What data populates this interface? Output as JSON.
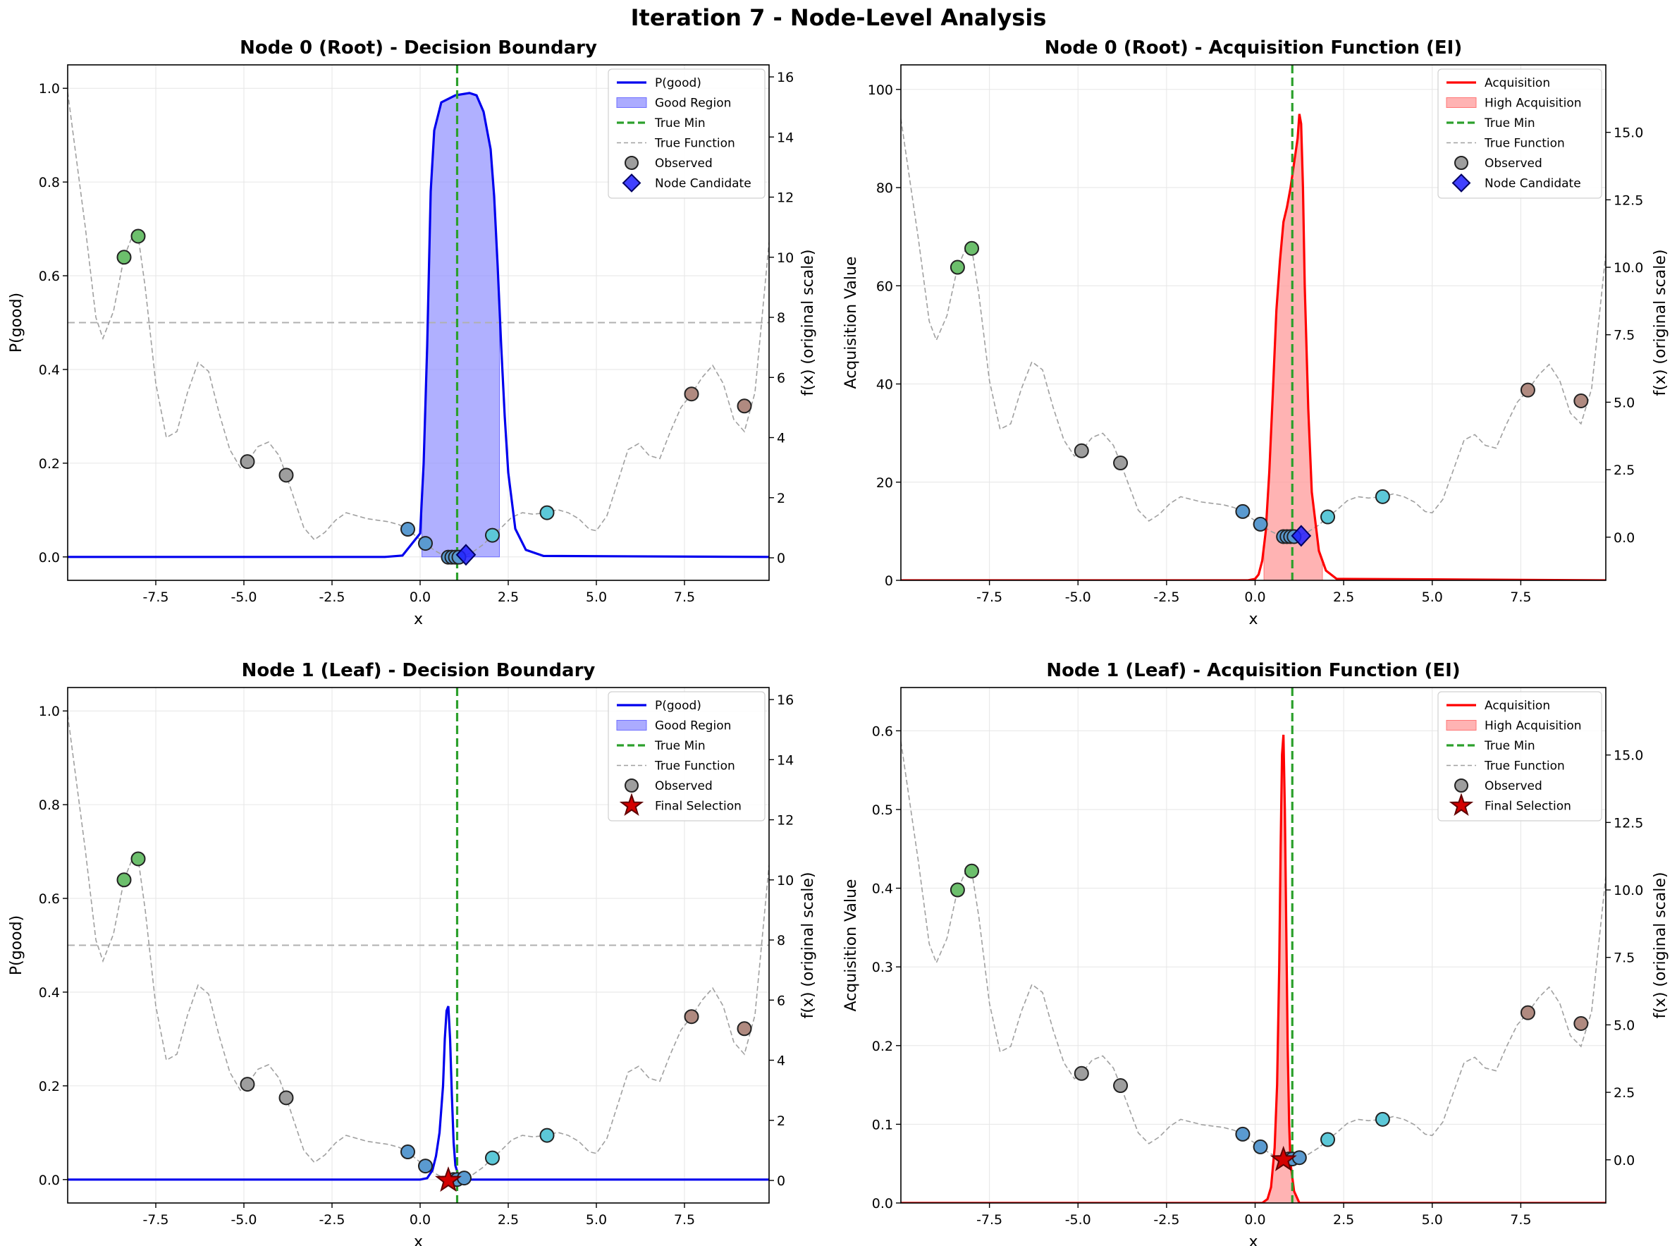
{
  "figure_title": "Iteration 7 - Node-Level Analysis",
  "colors": {
    "pgood": "#0000ee",
    "good_region": "#8f8fff",
    "acquisition": "#ff0000",
    "high_acquisition": "#ff9999",
    "true_min": "#2ca02c",
    "true_function": "#a0a0a0",
    "threshold": "#b0b0b0",
    "candidate": "#1f1fff",
    "final_selection": "#d40000",
    "obs_green": "#6cbf6c",
    "obs_gray": "#9e9e9e",
    "obs_blue": "#5a9ad0",
    "obs_cyan": "#5cc8d8",
    "obs_brown": "#b08a80"
  },
  "chart_data": [
    {
      "id": "node0-decision",
      "type": "line",
      "title": "Node 0 (Root) - Decision Boundary",
      "xlabel": "x",
      "ylabel": "P(good)",
      "y2label": "f(x) (original scale)",
      "xlim": [
        -10,
        9.9
      ],
      "ylim": [
        -0.05,
        1.05
      ],
      "y2lim": [
        -0.75,
        16.4
      ],
      "xticks": [
        "-7.5",
        "-5.0",
        "-2.5",
        "0.0",
        "2.5",
        "5.0",
        "7.5"
      ],
      "xtick_values": [
        -7.5,
        -5.0,
        -2.5,
        0.0,
        2.5,
        5.0,
        7.5
      ],
      "yticks": [
        "0.0",
        "0.2",
        "0.4",
        "0.6",
        "0.8",
        "1.0"
      ],
      "ytick_values": [
        0,
        0.2,
        0.4,
        0.6,
        0.8,
        1.0
      ],
      "y2ticks": [
        "0",
        "2",
        "4",
        "6",
        "8",
        "10",
        "12",
        "14",
        "16"
      ],
      "y2tick_values": [
        0,
        2,
        4,
        6,
        8,
        10,
        12,
        14,
        16
      ],
      "threshold": 0.5,
      "true_min_x": 1.05,
      "curve_kind": "pgood",
      "curve": {
        "x": [
          -10,
          -1.0,
          -0.5,
          0.0,
          0.1,
          0.2,
          0.3,
          0.4,
          0.6,
          1.0,
          1.4,
          1.6,
          1.8,
          2.0,
          2.1,
          2.2,
          2.3,
          2.4,
          2.5,
          2.7,
          3.0,
          3.5,
          9.9
        ],
        "y": [
          0,
          0,
          0.003,
          0.05,
          0.2,
          0.45,
          0.78,
          0.91,
          0.97,
          0.985,
          0.99,
          0.985,
          0.95,
          0.87,
          0.77,
          0.62,
          0.45,
          0.3,
          0.18,
          0.06,
          0.015,
          0.002,
          0
        ]
      },
      "fill_range": [
        0.05,
        2.25
      ],
      "legend": [
        "P(good)",
        "Good Region",
        "True Min",
        "True Function",
        "Observed",
        "Node Candidate"
      ],
      "marker": {
        "kind": "diamond",
        "x": 1.3,
        "y": 0.1
      },
      "observed": [
        {
          "x": -8.4,
          "y": 10.0,
          "c": "obs_green"
        },
        {
          "x": -8.0,
          "y": 10.7,
          "c": "obs_green"
        },
        {
          "x": -4.9,
          "y": 3.2,
          "c": "obs_gray"
        },
        {
          "x": -3.8,
          "y": 2.75,
          "c": "obs_gray"
        },
        {
          "x": -0.35,
          "y": 0.95,
          "c": "obs_blue"
        },
        {
          "x": 0.15,
          "y": 0.48,
          "c": "obs_blue"
        },
        {
          "x": 0.8,
          "y": 0.02,
          "c": "obs_blue"
        },
        {
          "x": 0.9,
          "y": 0.02,
          "c": "obs_blue"
        },
        {
          "x": 1.0,
          "y": 0.02,
          "c": "obs_blue"
        },
        {
          "x": 1.1,
          "y": 0.02,
          "c": "obs_blue"
        },
        {
          "x": 2.05,
          "y": 0.75,
          "c": "obs_cyan"
        },
        {
          "x": 3.6,
          "y": 1.5,
          "c": "obs_cyan"
        },
        {
          "x": 7.7,
          "y": 5.45,
          "c": "obs_brown"
        },
        {
          "x": 9.2,
          "y": 5.05,
          "c": "obs_brown"
        }
      ]
    },
    {
      "id": "node0-acquisition",
      "type": "area",
      "title": "Node 0 (Root) - Acquisition Function (EI)",
      "xlabel": "x",
      "ylabel": "Acquisition Value",
      "y2label": "f(x) (original scale)",
      "xlim": [
        -10,
        9.9
      ],
      "ylim": [
        0,
        105
      ],
      "y2lim": [
        -1.6,
        17.5
      ],
      "xticks": [
        "-7.5",
        "-5.0",
        "-2.5",
        "0.0",
        "2.5",
        "5.0",
        "7.5"
      ],
      "xtick_values": [
        -7.5,
        -5.0,
        -2.5,
        0.0,
        2.5,
        5.0,
        7.5
      ],
      "yticks": [
        "0",
        "20",
        "40",
        "60",
        "80",
        "100"
      ],
      "ytick_values": [
        0,
        20,
        40,
        60,
        80,
        100
      ],
      "y2ticks": [
        "0.0",
        "2.5",
        "5.0",
        "7.5",
        "10.0",
        "12.5",
        "15.0"
      ],
      "y2tick_values": [
        0,
        2.5,
        5,
        7.5,
        10,
        12.5,
        15
      ],
      "threshold": null,
      "true_min_x": 1.05,
      "curve_kind": "acquisition",
      "curve": {
        "x": [
          -10,
          -0.2,
          0.0,
          0.1,
          0.2,
          0.3,
          0.4,
          0.5,
          0.6,
          0.7,
          0.8,
          0.9,
          1.0,
          1.1,
          1.2,
          1.25,
          1.3,
          1.35,
          1.4,
          1.5,
          1.6,
          1.8,
          2.0,
          2.3,
          9.9
        ],
        "y": [
          0,
          0,
          0.3,
          1.2,
          4,
          10,
          22,
          38,
          55,
          65,
          73,
          76,
          80,
          85,
          90,
          95,
          93,
          80,
          60,
          35,
          18,
          6,
          2,
          0.3,
          0
        ]
      },
      "fill_range": [
        0.25,
        1.9
      ],
      "legend": [
        "Acquisition",
        "High Acquisition",
        "True Min",
        "True Function",
        "Observed",
        "Node Candidate"
      ],
      "marker": {
        "kind": "diamond",
        "x": 1.3,
        "y": 0.05
      },
      "observed": [
        {
          "x": -8.4,
          "y": 10.0,
          "c": "obs_green"
        },
        {
          "x": -8.0,
          "y": 10.7,
          "c": "obs_green"
        },
        {
          "x": -4.9,
          "y": 3.2,
          "c": "obs_gray"
        },
        {
          "x": -3.8,
          "y": 2.75,
          "c": "obs_gray"
        },
        {
          "x": -0.35,
          "y": 0.95,
          "c": "obs_blue"
        },
        {
          "x": 0.15,
          "y": 0.48,
          "c": "obs_blue"
        },
        {
          "x": 0.8,
          "y": 0.02,
          "c": "obs_blue"
        },
        {
          "x": 0.9,
          "y": 0.02,
          "c": "obs_blue"
        },
        {
          "x": 1.0,
          "y": 0.02,
          "c": "obs_blue"
        },
        {
          "x": 1.1,
          "y": 0.02,
          "c": "obs_blue"
        },
        {
          "x": 2.05,
          "y": 0.75,
          "c": "obs_cyan"
        },
        {
          "x": 3.6,
          "y": 1.5,
          "c": "obs_cyan"
        },
        {
          "x": 7.7,
          "y": 5.45,
          "c": "obs_brown"
        },
        {
          "x": 9.2,
          "y": 5.05,
          "c": "obs_brown"
        }
      ]
    },
    {
      "id": "node1-decision",
      "type": "line",
      "title": "Node 1 (Leaf) - Decision Boundary",
      "xlabel": "x",
      "ylabel": "P(good)",
      "y2label": "f(x) (original scale)",
      "xlim": [
        -10,
        9.9
      ],
      "ylim": [
        -0.05,
        1.05
      ],
      "y2lim": [
        -0.75,
        16.4
      ],
      "xticks": [
        "-7.5",
        "-5.0",
        "-2.5",
        "0.0",
        "2.5",
        "5.0",
        "7.5"
      ],
      "xtick_values": [
        -7.5,
        -5.0,
        -2.5,
        0.0,
        2.5,
        5.0,
        7.5
      ],
      "yticks": [
        "0.0",
        "0.2",
        "0.4",
        "0.6",
        "0.8",
        "1.0"
      ],
      "ytick_values": [
        0,
        0.2,
        0.4,
        0.6,
        0.8,
        1.0
      ],
      "y2ticks": [
        "0",
        "2",
        "4",
        "6",
        "8",
        "10",
        "12",
        "14",
        "16"
      ],
      "y2tick_values": [
        0,
        2,
        4,
        6,
        8,
        10,
        12,
        14,
        16
      ],
      "threshold": 0.5,
      "true_min_x": 1.05,
      "curve_kind": "pgood",
      "curve": {
        "x": [
          -10,
          0.0,
          0.2,
          0.35,
          0.45,
          0.55,
          0.65,
          0.7,
          0.75,
          0.8,
          0.85,
          0.9,
          0.95,
          1.0,
          1.1,
          1.2,
          9.9
        ],
        "y": [
          0,
          0,
          0.003,
          0.02,
          0.05,
          0.1,
          0.2,
          0.3,
          0.36,
          0.37,
          0.3,
          0.18,
          0.08,
          0.03,
          0.005,
          0,
          0
        ]
      },
      "fill_range": null,
      "legend": [
        "P(good)",
        "Good Region",
        "True Min",
        "True Function",
        "Observed",
        "Final Selection"
      ],
      "marker": {
        "kind": "star",
        "x": 0.8,
        "y": 0.0
      },
      "observed": [
        {
          "x": -8.4,
          "y": 10.0,
          "c": "obs_green"
        },
        {
          "x": -8.0,
          "y": 10.7,
          "c": "obs_green"
        },
        {
          "x": -4.9,
          "y": 3.2,
          "c": "obs_gray"
        },
        {
          "x": -3.8,
          "y": 2.75,
          "c": "obs_gray"
        },
        {
          "x": -0.35,
          "y": 0.95,
          "c": "obs_blue"
        },
        {
          "x": 0.15,
          "y": 0.48,
          "c": "obs_blue"
        },
        {
          "x": 0.95,
          "y": 0.03,
          "c": "obs_blue"
        },
        {
          "x": 1.05,
          "y": 0.03,
          "c": "obs_blue"
        },
        {
          "x": 1.25,
          "y": 0.08,
          "c": "obs_blue"
        },
        {
          "x": 2.05,
          "y": 0.75,
          "c": "obs_cyan"
        },
        {
          "x": 3.6,
          "y": 1.5,
          "c": "obs_cyan"
        },
        {
          "x": 7.7,
          "y": 5.45,
          "c": "obs_brown"
        },
        {
          "x": 9.2,
          "y": 5.05,
          "c": "obs_brown"
        }
      ]
    },
    {
      "id": "node1-acquisition",
      "type": "area",
      "title": "Node 1 (Leaf) - Acquisition Function (EI)",
      "xlabel": "x",
      "ylabel": "Acquisition Value",
      "y2label": "f(x) (original scale)",
      "xlim": [
        -10,
        9.9
      ],
      "ylim": [
        0,
        0.655
      ],
      "y2lim": [
        -1.6,
        17.5
      ],
      "xticks": [
        "-7.5",
        "-5.0",
        "-2.5",
        "0.0",
        "2.5",
        "5.0",
        "7.5"
      ],
      "xtick_values": [
        -7.5,
        -5.0,
        -2.5,
        0.0,
        2.5,
        5.0,
        7.5
      ],
      "yticks": [
        "0.0",
        "0.1",
        "0.2",
        "0.3",
        "0.4",
        "0.5",
        "0.6"
      ],
      "ytick_values": [
        0,
        0.1,
        0.2,
        0.3,
        0.4,
        0.5,
        0.6
      ],
      "y2ticks": [
        "0.0",
        "2.5",
        "5.0",
        "7.5",
        "10.0",
        "12.5",
        "15.0"
      ],
      "y2tick_values": [
        0,
        2.5,
        5,
        7.5,
        10,
        12.5,
        15
      ],
      "threshold": null,
      "true_min_x": 1.05,
      "curve_kind": "acquisition",
      "curve": {
        "x": [
          -10,
          0.2,
          0.35,
          0.45,
          0.55,
          0.62,
          0.68,
          0.72,
          0.76,
          0.8,
          0.84,
          0.88,
          0.92,
          0.96,
          1.0,
          1.1,
          1.25,
          9.9
        ],
        "y": [
          0,
          0,
          0.005,
          0.02,
          0.07,
          0.15,
          0.3,
          0.45,
          0.57,
          0.595,
          0.5,
          0.35,
          0.2,
          0.1,
          0.05,
          0.015,
          0,
          0
        ]
      },
      "fill_range": [
        0.2,
        1.35
      ],
      "legend": [
        "Acquisition",
        "High Acquisition",
        "True Min",
        "True Function",
        "Observed",
        "Final Selection"
      ],
      "marker": {
        "kind": "star",
        "x": 0.8,
        "y": 0.0
      },
      "observed": [
        {
          "x": -8.4,
          "y": 10.0,
          "c": "obs_green"
        },
        {
          "x": -8.0,
          "y": 10.7,
          "c": "obs_green"
        },
        {
          "x": -4.9,
          "y": 3.2,
          "c": "obs_gray"
        },
        {
          "x": -3.8,
          "y": 2.75,
          "c": "obs_gray"
        },
        {
          "x": -0.35,
          "y": 0.95,
          "c": "obs_blue"
        },
        {
          "x": 0.15,
          "y": 0.48,
          "c": "obs_blue"
        },
        {
          "x": 0.95,
          "y": 0.03,
          "c": "obs_blue"
        },
        {
          "x": 1.05,
          "y": 0.03,
          "c": "obs_blue"
        },
        {
          "x": 1.25,
          "y": 0.08,
          "c": "obs_blue"
        },
        {
          "x": 2.05,
          "y": 0.75,
          "c": "obs_cyan"
        },
        {
          "x": 3.6,
          "y": 1.5,
          "c": "obs_cyan"
        },
        {
          "x": 7.7,
          "y": 5.45,
          "c": "obs_brown"
        },
        {
          "x": 9.2,
          "y": 5.05,
          "c": "obs_brown"
        }
      ]
    }
  ],
  "true_function": {
    "x": [
      -10,
      -9.5,
      -9.2,
      -9.0,
      -8.7,
      -8.4,
      -8.2,
      -8.0,
      -7.8,
      -7.5,
      -7.2,
      -6.9,
      -6.6,
      -6.3,
      -6.0,
      -5.7,
      -5.4,
      -5.1,
      -4.9,
      -4.6,
      -4.3,
      -4.0,
      -3.8,
      -3.5,
      -3.3,
      -3.0,
      -2.7,
      -2.4,
      -2.1,
      -1.8,
      -1.5,
      -1.2,
      -0.9,
      -0.6,
      -0.35,
      -0.1,
      0.15,
      0.4,
      0.6,
      0.8,
      1.0,
      1.2,
      1.5,
      1.8,
      2.05,
      2.3,
      2.6,
      2.9,
      3.2,
      3.6,
      3.9,
      4.2,
      4.5,
      4.8,
      5.0,
      5.3,
      5.6,
      5.9,
      6.2,
      6.5,
      6.8,
      7.1,
      7.4,
      7.7,
      8.0,
      8.3,
      8.6,
      8.9,
      9.2,
      9.5,
      9.9
    ],
    "y": [
      15.5,
      11.0,
      8.0,
      7.3,
      8.2,
      10.0,
      10.6,
      10.7,
      9.0,
      5.8,
      4.0,
      4.2,
      5.5,
      6.5,
      6.2,
      4.8,
      3.6,
      3.0,
      3.2,
      3.7,
      3.85,
      3.4,
      2.75,
      1.7,
      1.0,
      0.6,
      0.85,
      1.25,
      1.5,
      1.4,
      1.3,
      1.25,
      1.2,
      1.1,
      0.95,
      0.7,
      0.48,
      0.25,
      0.12,
      0.04,
      0.02,
      0.05,
      0.2,
      0.45,
      0.75,
      1.0,
      1.35,
      1.5,
      1.45,
      1.5,
      1.6,
      1.5,
      1.3,
      0.95,
      0.9,
      1.4,
      2.5,
      3.6,
      3.8,
      3.4,
      3.3,
      4.2,
      5.0,
      5.45,
      6.0,
      6.4,
      5.8,
      4.6,
      4.2,
      5.5,
      10.5
    ]
  }
}
